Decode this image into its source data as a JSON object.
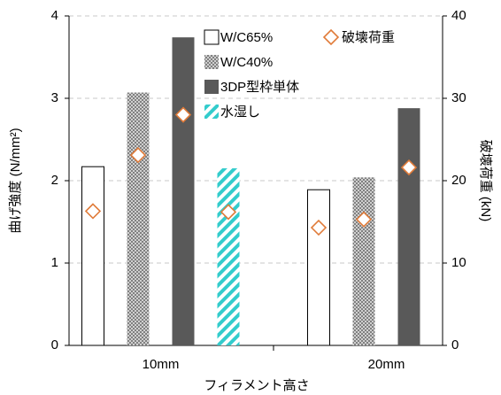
{
  "chart_data": {
    "type": "bar",
    "categories": [
      "10mm",
      "20mm"
    ],
    "xlabel": "フィラメント高さ",
    "ylabel": "曲げ強度 (N/mm²)",
    "y2label": "破壊荷重 (kN)",
    "ylim": [
      0,
      4
    ],
    "yticks": [
      0,
      1,
      2,
      3,
      4
    ],
    "y2lim": [
      0,
      40
    ],
    "y2ticks": [
      0,
      10,
      20,
      30,
      40
    ],
    "grid": true,
    "series": [
      {
        "name": "W/C65%",
        "color": "#ffffff",
        "pattern": "none",
        "values": [
          2.17,
          1.89
        ]
      },
      {
        "name": "W/C40%",
        "color": "#a6a6a6",
        "pattern": "checker",
        "values": [
          3.07,
          2.04
        ]
      },
      {
        "name": "3DP型枠単体",
        "color": "#595959",
        "pattern": "none",
        "values": [
          3.74,
          2.88
        ]
      },
      {
        "name": "水湿し",
        "color": "#33cccc",
        "pattern": "diagonal",
        "values": [
          2.15,
          null
        ]
      },
      {
        "name": "破壊荷重",
        "color": "#e07b39",
        "marker": "diamond",
        "axis": "y2",
        "values": [
          [
            16.3,
            23.1,
            28.0,
            16.2
          ],
          [
            14.3,
            15.3,
            21.6,
            null
          ]
        ]
      }
    ]
  }
}
